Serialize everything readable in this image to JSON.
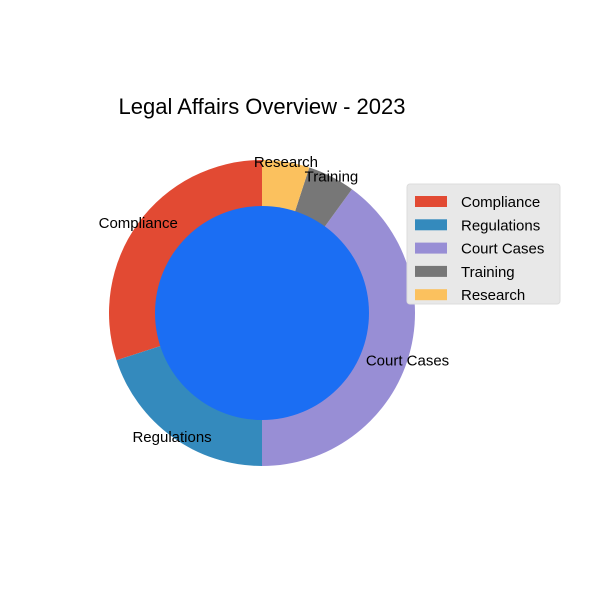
{
  "chart_data": {
    "type": "pie",
    "title": "Legal Affairs Overview - 2023",
    "categories": [
      "Compliance",
      "Regulations",
      "Court Cases",
      "Training",
      "Research"
    ],
    "values": [
      30,
      20,
      40,
      5,
      5
    ],
    "colors": [
      "#E24A33",
      "#348ABD",
      "#988ED5",
      "#777777",
      "#FBC15E"
    ],
    "center_color": "#1B6EF3",
    "legend_position": "right",
    "slice_labels": [
      "Compliance",
      "Regulations",
      "Court Cases",
      "Training",
      "Research"
    ]
  }
}
